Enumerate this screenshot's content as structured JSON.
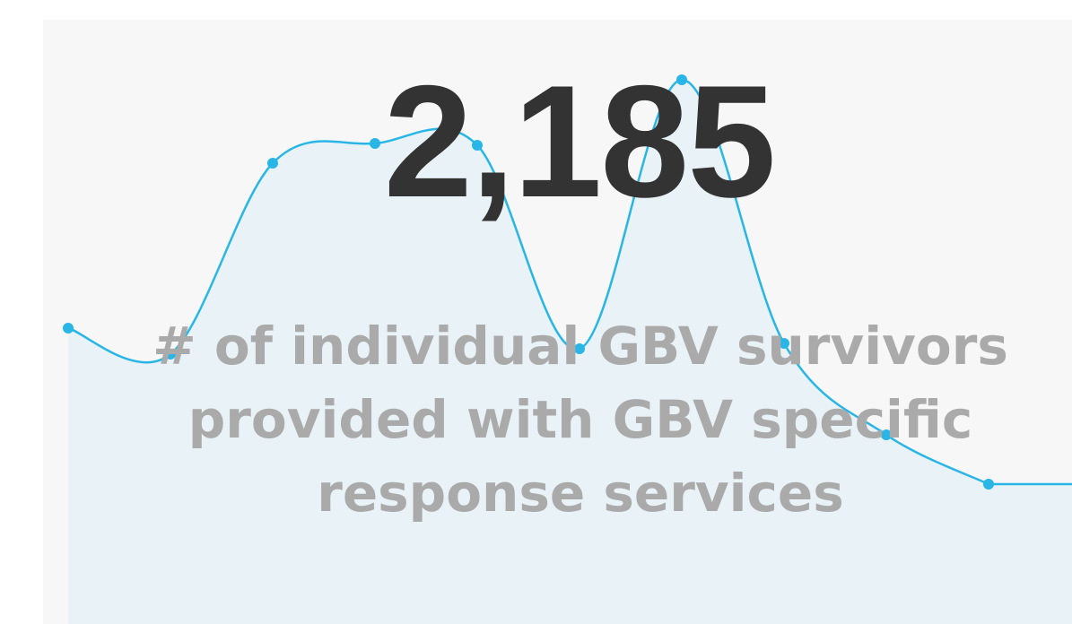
{
  "kpi": {
    "value": "2,185",
    "label": "# of individual GBV survivors provided with GBV specific response services"
  },
  "chart_data": {
    "type": "line",
    "color": "#29b6e6",
    "fill": "#e9f2f6",
    "values": [
      330,
      301,
      514,
      536,
      534,
      307,
      607,
      313,
      211,
      156
    ]
  }
}
